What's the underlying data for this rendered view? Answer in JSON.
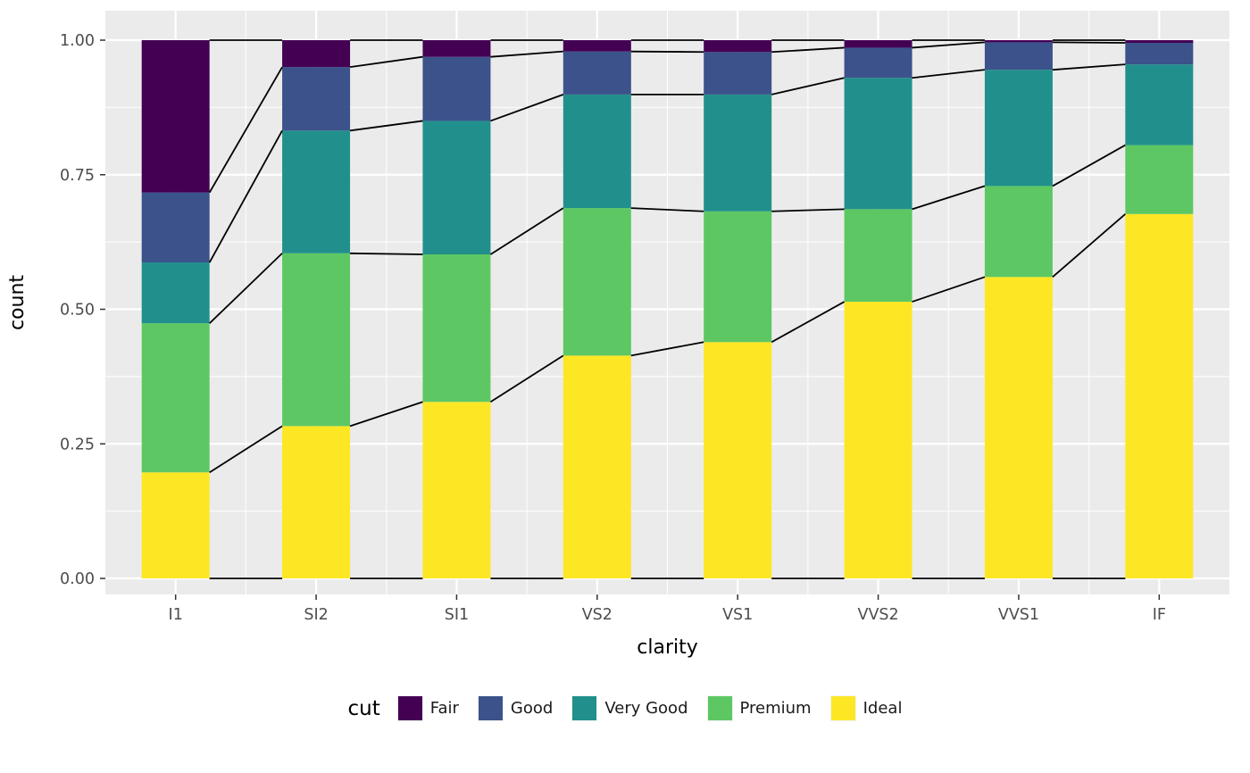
{
  "chart_data": {
    "type": "bar",
    "stacked": true,
    "normalized": true,
    "title": "",
    "xlabel": "clarity",
    "ylabel": "count",
    "categories": [
      "I1",
      "SI2",
      "SI1",
      "VS2",
      "VS1",
      "VVS2",
      "VVS1",
      "IF"
    ],
    "series": [
      {
        "name": "Ideal",
        "color": "#FDE725",
        "values": [
          0.197,
          0.283,
          0.328,
          0.414,
          0.439,
          0.514,
          0.56,
          0.677
        ]
      },
      {
        "name": "Premium",
        "color": "#5DC863",
        "values": [
          0.277,
          0.321,
          0.274,
          0.274,
          0.243,
          0.172,
          0.169,
          0.128
        ]
      },
      {
        "name": "Very Good",
        "color": "#21908C",
        "values": [
          0.113,
          0.228,
          0.248,
          0.211,
          0.217,
          0.244,
          0.216,
          0.15
        ]
      },
      {
        "name": "Good",
        "color": "#3B528B",
        "values": [
          0.13,
          0.118,
          0.119,
          0.08,
          0.079,
          0.056,
          0.051,
          0.04
        ]
      },
      {
        "name": "Fair",
        "color": "#440154",
        "values": [
          0.283,
          0.051,
          0.031,
          0.021,
          0.021,
          0.014,
          0.005,
          0.005
        ]
      }
    ],
    "ylim": [
      0,
      1
    ],
    "y_ticks": [
      0,
      0.25,
      0.5,
      0.75,
      1
    ],
    "y_tick_labels": [
      "0.00",
      "0.25",
      "0.50",
      "0.75",
      "1.00"
    ],
    "connector_lines": true,
    "legend": {
      "title": "cut",
      "position": "bottom",
      "order": [
        "Fair",
        "Good",
        "Very Good",
        "Premium",
        "Ideal"
      ]
    },
    "panel_bg": "#EBEBEB",
    "grid_color": "#FFFFFF",
    "line_color": "#000000",
    "tick_label_color": "#4D4D4D",
    "axis_title_color": "#000000"
  }
}
